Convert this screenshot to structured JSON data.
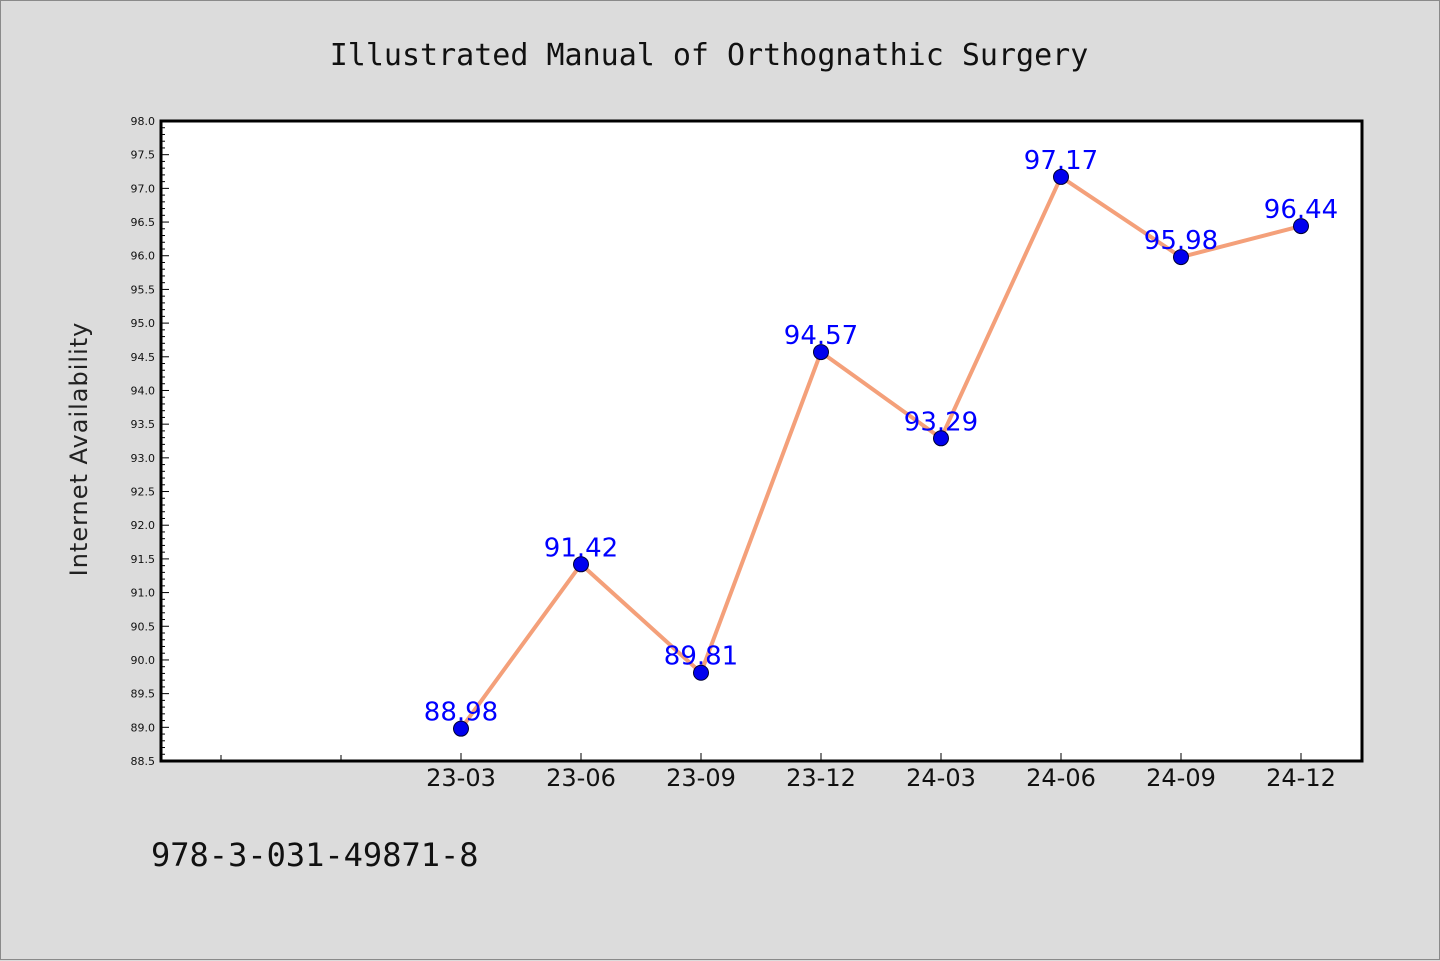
{
  "chart_data": {
    "type": "line",
    "title": "Illustrated Manual of Orthognathic Surgery",
    "xlabel": "",
    "ylabel": "Internet Availability",
    "categories": [
      "23-03",
      "23-06",
      "23-09",
      "23-12",
      "24-03",
      "24-06",
      "24-09",
      "24-12"
    ],
    "series": [
      {
        "values": [
          88.98,
          91.42,
          89.81,
          94.57,
          93.29,
          97.17,
          95.98,
          96.44
        ],
        "data_labels": [
          "88.98",
          "91.42",
          "89.81",
          "94.57",
          "93.29",
          "97.17",
          "95.98",
          "96.44"
        ]
      }
    ],
    "ylim": [
      88.5,
      98.0
    ],
    "yticks": [
      "88.5",
      "89.0",
      "89.5",
      "90.0",
      "90.5",
      "91.0",
      "91.5",
      "92.0",
      "92.5",
      "93.0",
      "93.5",
      "94.0",
      "94.5",
      "95.0",
      "95.5",
      "96.0",
      "96.5",
      "97.0",
      "97.5",
      "98.0"
    ],
    "grid": false,
    "legend": "none",
    "line_color": "#f4a07a",
    "marker_color": "#0000ee",
    "label_color": "#0000ff"
  },
  "footer": {
    "isbn": "978-3-031-49871-8"
  }
}
